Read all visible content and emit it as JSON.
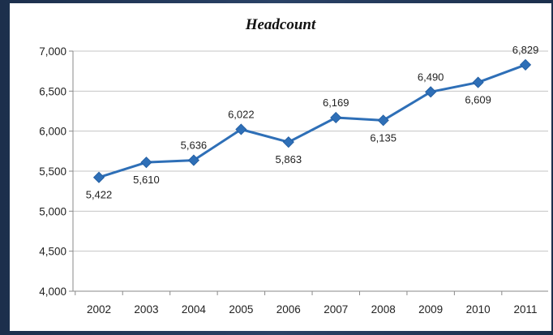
{
  "chart_data": {
    "type": "line",
    "title": "Headcount",
    "xlabel": "",
    "ylabel": "",
    "categories": [
      "2002",
      "2003",
      "2004",
      "2005",
      "2006",
      "2007",
      "2008",
      "2009",
      "2010",
      "2011"
    ],
    "series": [
      {
        "values": [
          5422,
          5610,
          5636,
          6022,
          5863,
          6169,
          6135,
          6490,
          6609,
          6829
        ],
        "data_labels": [
          "5,422",
          "5,610",
          "5,636",
          "6,022",
          "5,863",
          "6,169",
          "6,135",
          "6,490",
          "6,609",
          "6,829"
        ],
        "label_positions": [
          "below",
          "below",
          "above",
          "above",
          "below",
          "above",
          "below",
          "above",
          "below",
          "above"
        ],
        "color": "#2e6fb7",
        "marker": "diamond"
      }
    ],
    "ylim": [
      4000,
      7000
    ],
    "y_ticks": [
      4000,
      4500,
      5000,
      5500,
      6000,
      6500,
      7000
    ],
    "y_tick_labels": [
      "4,000",
      "4,500",
      "5,000",
      "5,500",
      "6,000",
      "6,500",
      "7,000"
    ],
    "grid": true,
    "legend": "none"
  }
}
